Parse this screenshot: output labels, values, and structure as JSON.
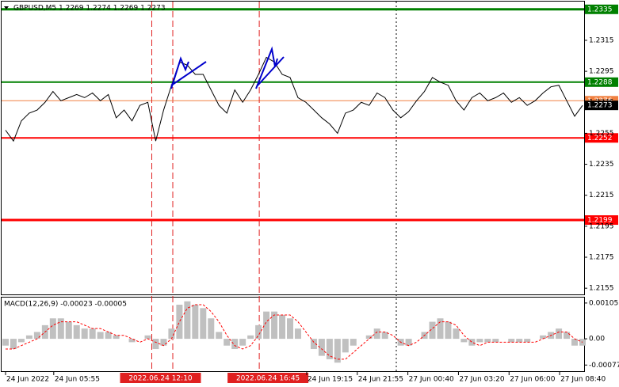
{
  "chart_data": [
    {
      "type": "line",
      "title": "GBPUSD,M5  1.2269 1.2274 1.2269 1.2273",
      "color": "#000000",
      "values": [
        1.2257,
        1.225,
        1.2263,
        1.2268,
        1.227,
        1.2275,
        1.2282,
        1.2276,
        1.2278,
        1.228,
        1.2278,
        1.2281,
        1.2276,
        1.228,
        1.2265,
        1.227,
        1.2263,
        1.2273,
        1.2275,
        1.225,
        1.227,
        1.2286,
        1.2301,
        1.2299,
        1.2293,
        1.2293,
        1.2283,
        1.2273,
        1.2268,
        1.2283,
        1.2275,
        1.2283,
        1.2293,
        1.2304,
        1.2301,
        1.2293,
        1.2291,
        1.2278,
        1.2275,
        1.227,
        1.2265,
        1.2261,
        1.2255,
        1.2268,
        1.227,
        1.2275,
        1.2273,
        1.2281,
        1.2278,
        1.227,
        1.2265,
        1.2269,
        1.2276,
        1.2282,
        1.2291,
        1.2288,
        1.2286,
        1.2276,
        1.227,
        1.2278,
        1.2281,
        1.2276,
        1.2278,
        1.2281,
        1.2275,
        1.2278,
        1.2273,
        1.2276,
        1.2281,
        1.2285,
        1.2286,
        1.2276,
        1.2266,
        1.2273
      ],
      "xlim": [
        -0.5,
        73.2
      ],
      "xticks": [
        {
          "value": 0,
          "label": "24 Jun 2022"
        },
        {
          "value": 6.1,
          "label": "24 Jun 05:55"
        },
        {
          "value": 38.1,
          "label": "24 Jun 19:15"
        },
        {
          "value": 44.5,
          "label": "24 Jun 21:55"
        },
        {
          "value": 50.9,
          "label": "27 Jun 00:40"
        },
        {
          "value": 57.3,
          "label": "27 Jun 03:20"
        },
        {
          "value": 63.7,
          "label": "27 Jun 06:00"
        },
        {
          "value": 70.1,
          "label": "27 Jun 08:40"
        }
      ],
      "markers": [
        {
          "x": 18.5,
          "label": "2022.06.24 12:10"
        },
        {
          "x": 32.1,
          "label": "2022.06.24 16:45"
        }
      ],
      "ylim": [
        1.2151,
        1.234
      ],
      "yticks": [
        1.2315,
        1.2295,
        1.2275,
        1.2255,
        1.2235,
        1.2215,
        1.2195,
        1.2175,
        1.2155
      ],
      "levels": [
        {
          "value": 1.2335,
          "color": "#008000"
        },
        {
          "value": 1.2288,
          "color": "#008000"
        },
        {
          "value": 1.2276,
          "color": "#f08040"
        },
        {
          "value": 1.2252,
          "color": "#ff0000"
        },
        {
          "value": 1.2199,
          "color": "#ff0000"
        }
      ]
    },
    {
      "type": "bar",
      "title": "MACD(12,26,9) -0.00023 -0.00005",
      "series": [
        {
          "color": "#c0c0c0",
          "values": [
            -0.0002,
            -0.0003,
            -0.0001,
            0.0001,
            0.0002,
            0.0004,
            0.0006,
            0.0006,
            0.0005,
            0.0004,
            0.0003,
            0.0003,
            0.0002,
            0.0002,
            0.0001,
            0.0,
            -0.0001,
            0.0,
            0.0001,
            -0.0003,
            -0.0002,
            0.0003,
            0.001,
            0.0011,
            0.001,
            0.0009,
            0.0006,
            0.0002,
            -0.0002,
            -0.0003,
            -0.0002,
            0.0001,
            0.0004,
            0.0008,
            0.0008,
            0.0007,
            0.0006,
            0.0003,
            0.0,
            -0.0003,
            -0.0005,
            -0.0006,
            -0.0007,
            -0.0004,
            -0.0002,
            0.0,
            0.0001,
            0.0003,
            0.0002,
            0.0,
            -0.0002,
            -0.0002,
            0.0,
            0.0002,
            0.0005,
            0.0006,
            0.0005,
            0.0003,
            -0.0001,
            -0.0002,
            -0.0001,
            -0.0001,
            -0.0001,
            0.0,
            -0.0001,
            -0.0001,
            -0.0001,
            0.0,
            0.0001,
            0.0002,
            0.0003,
            0.0002,
            -0.0002,
            -0.0002
          ]
        },
        {
          "color": "#ff0000",
          "values": [
            -0.0003,
            -0.0003,
            -0.0002,
            -0.0001,
            0.0,
            0.0002,
            0.0004,
            0.0005,
            0.0005,
            0.0005,
            0.0004,
            0.0003,
            0.0003,
            0.0002,
            0.0001,
            0.0001,
            0.0,
            -0.0001,
            0.0,
            -0.0001,
            -0.0002,
            0.0,
            0.0005,
            0.0009,
            0.001,
            0.001,
            0.0008,
            0.0005,
            0.0001,
            -0.0002,
            -0.0003,
            -0.0002,
            0.0001,
            0.0005,
            0.0007,
            0.0007,
            0.0007,
            0.0005,
            0.0002,
            -0.0001,
            -0.0003,
            -0.0005,
            -0.0006,
            -0.0006,
            -0.0004,
            -0.0002,
            0.0,
            0.0002,
            0.0002,
            0.0001,
            -0.0001,
            -0.0002,
            -0.0001,
            0.0001,
            0.0003,
            0.0005,
            0.0005,
            0.0004,
            0.0001,
            -0.0001,
            -0.0002,
            -0.0001,
            -0.0001,
            -0.0001,
            -0.0001,
            -0.0001,
            -0.0001,
            -0.0001,
            0.0,
            0.0001,
            0.0002,
            0.0002,
            0.0,
            -0.0001
          ]
        }
      ],
      "ylim": [
        -0.00095,
        0.00121
      ],
      "yticks": [
        0.00105,
        {
          "value": 0,
          "label": "0.00"
        },
        -0.00077
      ]
    }
  ]
}
